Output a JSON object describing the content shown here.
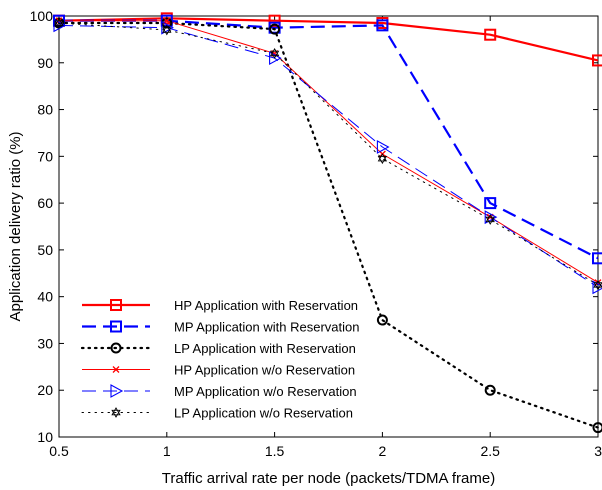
{
  "chart_data": {
    "type": "line",
    "title": "",
    "xlabel": "Traffic arrival rate per node (packets/TDMA frame)",
    "ylabel": "Application delivery ratio (%)",
    "xlim": [
      0.5,
      3
    ],
    "ylim": [
      10,
      100
    ],
    "xticks": [
      "0.5",
      "1",
      "1.5",
      "2",
      "2.5",
      "3"
    ],
    "yticks": [
      "10",
      "20",
      "30",
      "40",
      "50",
      "60",
      "70",
      "80",
      "90",
      "100"
    ],
    "grid": false,
    "legend_position": "bottom-left",
    "x": [
      0.5,
      1,
      1.5,
      2,
      2.5,
      3
    ],
    "series": [
      {
        "name": "HP Application with Reservation",
        "values": [
          99,
          99.5,
          99,
          98.5,
          96,
          90.5
        ],
        "color": "#ff0000",
        "dash": "solid",
        "marker": "square",
        "width": "thick"
      },
      {
        "name": "MP Application with Reservation",
        "values": [
          99,
          99,
          97.5,
          98,
          60,
          48.2
        ],
        "color": "#0000ff",
        "dash": "dashed",
        "marker": "square",
        "width": "thick"
      },
      {
        "name": "LP Application with Reservation",
        "values": [
          98.5,
          98.5,
          97.2,
          35,
          20,
          12
        ],
        "color": "#000000",
        "dash": "dotted",
        "marker": "circle",
        "width": "thick"
      },
      {
        "name": "HP Application w/o Reservation",
        "values": [
          99,
          99,
          92,
          70.5,
          57,
          43
        ],
        "color": "#ff0000",
        "dash": "solid",
        "marker": "x",
        "width": "thin"
      },
      {
        "name": "MP Application w/o Reservation",
        "values": [
          98,
          97.5,
          91,
          72,
          57,
          42
        ],
        "color": "#0000ff",
        "dash": "dashed",
        "marker": "triangle-right",
        "width": "thin"
      },
      {
        "name": "LP Application w/o Reservation",
        "values": [
          98.5,
          97,
          92,
          69.5,
          56.5,
          42.5
        ],
        "color": "#000000",
        "dash": "dotted",
        "marker": "hexagram",
        "width": "thin"
      }
    ]
  }
}
